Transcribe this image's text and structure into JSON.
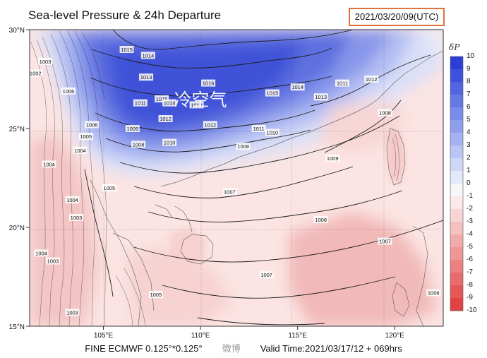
{
  "header": {
    "title": "Sea-level Pressure & 24h Departure",
    "datetime": "2021/03/20/09(UTC)"
  },
  "footer": {
    "model": "FINE ECMWF 0.125°*0.125°",
    "watermark": "微博",
    "valid_time": "Valid Time:2021/03/17/12 + 069hrs"
  },
  "annotation": "冷空气",
  "axes": {
    "lat_labels": [
      "30°N",
      "25°N",
      "20°N",
      "15°N"
    ],
    "lon_labels": [
      "105°E",
      "110°E",
      "115°E",
      "120°E"
    ]
  },
  "colorbar": {
    "title": "δP",
    "levels": [
      "10",
      "9",
      "8",
      "7",
      "6",
      "5",
      "4",
      "3",
      "2",
      "1",
      "0",
      "-1",
      "-2",
      "-3",
      "-4",
      "-5",
      "-6",
      "-7",
      "-8",
      "-9",
      "-10"
    ],
    "colors": [
      "#2b3fd6",
      "#3d52dc",
      "#5165e0",
      "#6579e5",
      "#7a8ce9",
      "#8f9fed",
      "#a4b2f1",
      "#b9c5f5",
      "#ced7f8",
      "#e3e9fb",
      "#f6f6f8",
      "#fbe9e9",
      "#f8d5d5",
      "#f5c0c0",
      "#f2abab",
      "#ef9696",
      "#ec8181",
      "#e96c6c",
      "#e65757",
      "#e34242",
      "#e02d2d"
    ]
  },
  "contour_labels": [
    {
      "text": "1015",
      "lon": 106.2,
      "lat": 29.0
    },
    {
      "text": "1014",
      "lon": 107.3,
      "lat": 28.7
    },
    {
      "text": "1013",
      "lon": 107.2,
      "lat": 27.6
    },
    {
      "text": "1016",
      "lon": 110.4,
      "lat": 27.3
    },
    {
      "text": "1015",
      "lon": 108.0,
      "lat": 26.5
    },
    {
      "text": "1014",
      "lon": 108.4,
      "lat": 26.3
    },
    {
      "text": "1013",
      "lon": 109.8,
      "lat": 26.2
    },
    {
      "text": "1011",
      "lon": 106.9,
      "lat": 26.3
    },
    {
      "text": "1012",
      "lon": 108.2,
      "lat": 25.5
    },
    {
      "text": "1012",
      "lon": 110.5,
      "lat": 25.2
    },
    {
      "text": "1009",
      "lon": 106.5,
      "lat": 25.0
    },
    {
      "text": "1008",
      "lon": 106.8,
      "lat": 24.2
    },
    {
      "text": "1010",
      "lon": 108.4,
      "lat": 24.3
    },
    {
      "text": "1006",
      "lon": 104.4,
      "lat": 25.2
    },
    {
      "text": "1005",
      "lon": 104.1,
      "lat": 24.6
    },
    {
      "text": "1004",
      "lon": 103.8,
      "lat": 23.9
    },
    {
      "text": "1005",
      "lon": 105.3,
      "lat": 22.0
    },
    {
      "text": "1004",
      "lon": 103.4,
      "lat": 21.4
    },
    {
      "text": "1003",
      "lon": 103.6,
      "lat": 20.5
    },
    {
      "text": "1002",
      "lon": 101.5,
      "lat": 27.8
    },
    {
      "text": "1003",
      "lon": 102.0,
      "lat": 28.4
    },
    {
      "text": "1006",
      "lon": 103.2,
      "lat": 26.9
    },
    {
      "text": "1004",
      "lon": 102.2,
      "lat": 23.2
    },
    {
      "text": "1004",
      "lon": 101.8,
      "lat": 18.7
    },
    {
      "text": "1003",
      "lon": 102.4,
      "lat": 18.3
    },
    {
      "text": "1003",
      "lon": 103.4,
      "lat": 15.7
    },
    {
      "text": "1005",
      "lon": 107.7,
      "lat": 16.6
    },
    {
      "text": "1007",
      "lon": 111.5,
      "lat": 21.8
    },
    {
      "text": "1008",
      "lon": 112.2,
      "lat": 24.1
    },
    {
      "text": "1010",
      "lon": 113.7,
      "lat": 24.8
    },
    {
      "text": "1011",
      "lon": 113.0,
      "lat": 25.0
    },
    {
      "text": "1014",
      "lon": 115.0,
      "lat": 27.1
    },
    {
      "text": "1015",
      "lon": 113.7,
      "lat": 26.8
    },
    {
      "text": "1013",
      "lon": 116.2,
      "lat": 26.6
    },
    {
      "text": "1011",
      "lon": 117.3,
      "lat": 27.3
    },
    {
      "text": "1012",
      "lon": 118.8,
      "lat": 27.5
    },
    {
      "text": "1008",
      "lon": 119.5,
      "lat": 25.8
    },
    {
      "text": "1009",
      "lon": 116.8,
      "lat": 23.5
    },
    {
      "text": "1008",
      "lon": 116.2,
      "lat": 20.4
    },
    {
      "text": "1007",
      "lon": 119.5,
      "lat": 19.3
    },
    {
      "text": "1007",
      "lon": 113.4,
      "lat": 17.6
    },
    {
      "text": "1006",
      "lon": 122.0,
      "lat": 16.7
    }
  ]
}
